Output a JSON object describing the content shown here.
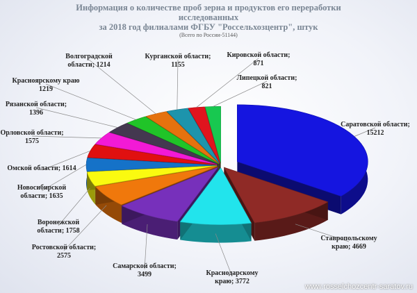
{
  "chart_data": {
    "type": "pie",
    "title": "Информация о количестве проб зерна и продуктов его переработки исследованных",
    "title_line1": "Информация о количестве проб зерна и продуктов его переработки",
    "title_line2": "исследованных",
    "title_line3": "за 2018 год филиалами ФГБУ \"Россельхозцентр\", штук",
    "subtitle": "(Всего по России-51144)",
    "slices": [
      {
        "label_lines": [
          "Саратовской области;",
          "15212"
        ],
        "value": 15212,
        "color": "#1515e0"
      },
      {
        "label_lines": [
          "Ставропольскому",
          "краю; 4669"
        ],
        "value": 4669,
        "color": "#8f2a26"
      },
      {
        "label_lines": [
          "Краснодарскому",
          "краю; 3772"
        ],
        "value": 3772,
        "color": "#22e4ec"
      },
      {
        "label_lines": [
          "Самарской области;",
          "3499"
        ],
        "value": 3499,
        "color": "#7730bb"
      },
      {
        "label_lines": [
          "Ростовской области;",
          "2575"
        ],
        "value": 2575,
        "color": "#f0780c"
      },
      {
        "label_lines": [
          "Воронежской",
          "области; 1758"
        ],
        "value": 1758,
        "color": "#fafa10"
      },
      {
        "label_lines": [
          "Новосибирской",
          "области; 1635"
        ],
        "value": 1635,
        "color": "#1572c8"
      },
      {
        "label_lines": [
          "Омской области; 1614"
        ],
        "value": 1614,
        "color": "#e01010"
      },
      {
        "label_lines": [
          "Орловской области;",
          "1575"
        ],
        "value": 1575,
        "color": "#f21ad6"
      },
      {
        "label_lines": [
          "Рязанской области;",
          "1396"
        ],
        "value": 1396,
        "color": "#443850"
      },
      {
        "label_lines": [
          "Красноярскому краю",
          "1219"
        ],
        "value": 1219,
        "color": "#20c428"
      },
      {
        "label_lines": [
          "Волгоградской",
          "области; 1214"
        ],
        "value": 1214,
        "color": "#e5720e"
      },
      {
        "label_lines": [
          "Курганской области;",
          "1155"
        ],
        "value": 1155,
        "color": "#1d94ac"
      },
      {
        "label_lines": [
          "Кировской области;",
          "871"
        ],
        "value": 871,
        "color": "#e0141e"
      },
      {
        "label_lines": [
          "Липецкой области;",
          "821"
        ],
        "value": 821,
        "color": "#18c850"
      }
    ]
  },
  "footer": {
    "url": "www.rosselchozcentr-saratov.ru"
  }
}
